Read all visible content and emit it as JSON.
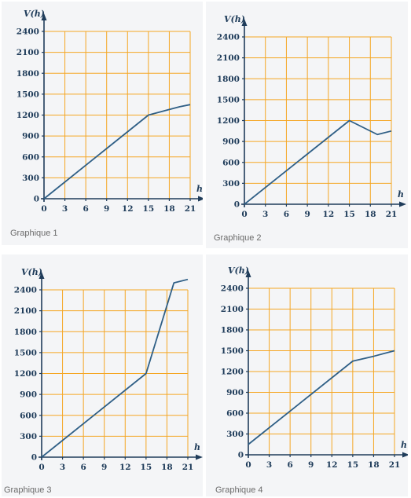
{
  "chart_data": [
    {
      "type": "line",
      "caption": "Graphique 1",
      "ylabel": "V(h)",
      "xlabel": "h",
      "xlim": [
        0,
        21
      ],
      "ylim": [
        0,
        2400
      ],
      "x_ticks": [
        "0",
        "3",
        "6",
        "9",
        "12",
        "15",
        "18",
        "21"
      ],
      "y_ticks": [
        "0",
        "300",
        "600",
        "900",
        "1200",
        "1500",
        "1800",
        "2100",
        "2400"
      ],
      "grid": true,
      "series": [
        {
          "x": [
            0,
            15,
            18,
            19.5,
            21
          ],
          "y": [
            0,
            1200,
            1280,
            1320,
            1350
          ]
        }
      ]
    },
    {
      "type": "line",
      "caption": "Graphique 2",
      "ylabel": "V(h)",
      "xlabel": "h",
      "xlim": [
        0,
        21
      ],
      "ylim": [
        0,
        2400
      ],
      "x_ticks": [
        "0",
        "3",
        "6",
        "9",
        "12",
        "15",
        "18",
        "21"
      ],
      "y_ticks": [
        "0",
        "300",
        "600",
        "900",
        "1200",
        "1500",
        "1800",
        "2100",
        "2400"
      ],
      "grid": true,
      "series": [
        {
          "x": [
            0,
            15,
            19,
            21
          ],
          "y": [
            0,
            1200,
            1000,
            1050
          ]
        }
      ]
    },
    {
      "type": "line",
      "caption": "Graphique 3",
      "ylabel": "V(h)",
      "xlabel": "h",
      "xlim": [
        0,
        21
      ],
      "ylim": [
        0,
        2400
      ],
      "x_ticks": [
        "0",
        "3",
        "6",
        "9",
        "12",
        "15",
        "18",
        "21"
      ],
      "y_ticks": [
        "0",
        "300",
        "600",
        "900",
        "1200",
        "1500",
        "1800",
        "2100",
        "2400"
      ],
      "grid": true,
      "series": [
        {
          "x": [
            0,
            15,
            19,
            21
          ],
          "y": [
            0,
            1200,
            2500,
            2550
          ]
        }
      ]
    },
    {
      "type": "line",
      "caption": "Graphique 4",
      "ylabel": "V(h)",
      "xlabel": "h",
      "xlim": [
        0,
        21
      ],
      "ylim": [
        0,
        2400
      ],
      "x_ticks": [
        "0",
        "3",
        "6",
        "9",
        "12",
        "15",
        "18",
        "21"
      ],
      "y_ticks": [
        "0",
        "300",
        "600",
        "900",
        "1200",
        "1500",
        "1800",
        "2100",
        "2400"
      ],
      "grid": true,
      "series": [
        {
          "x": [
            0,
            15,
            18,
            21
          ],
          "y": [
            150,
            1350,
            1420,
            1500
          ]
        }
      ]
    }
  ],
  "colors": {
    "grid": "#f5a623",
    "axis": "#1f3c5a",
    "line": "#2f5f86",
    "caption": "#6b6b6b"
  }
}
